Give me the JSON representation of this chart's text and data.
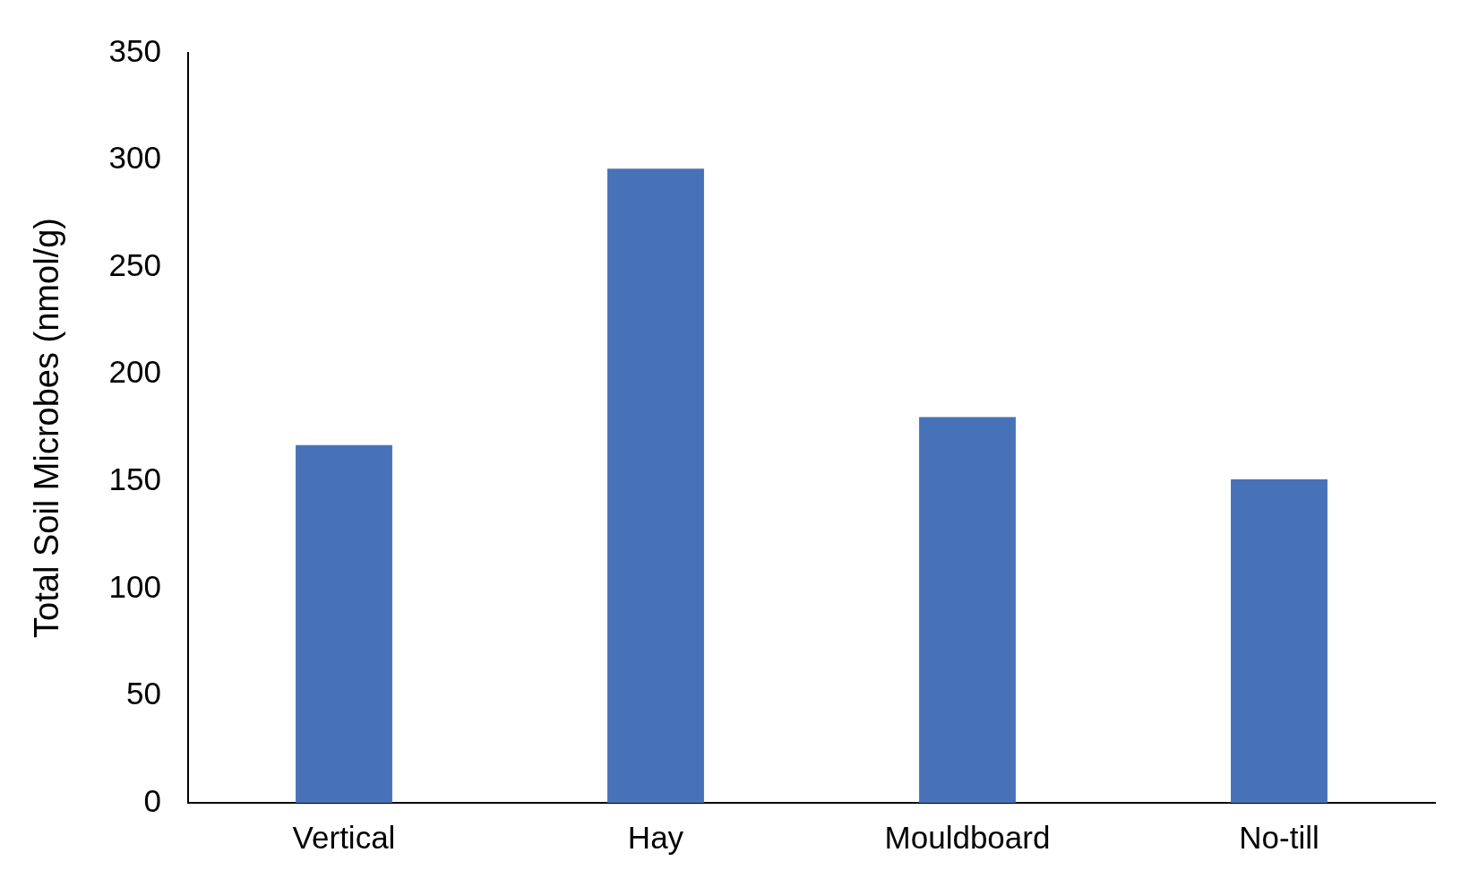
{
  "chart_data": {
    "type": "bar",
    "ylabel": "Total Soil Microbes (nmol/g)",
    "categories": [
      "Vertical",
      "Hay",
      "Mouldboard",
      "No-till"
    ],
    "values": [
      167,
      296,
      180,
      151
    ],
    "color": "#4872b7",
    "ylim": [
      0,
      350
    ],
    "yticks": [
      0,
      50,
      100,
      150,
      200,
      250,
      300,
      350
    ],
    "grid": false,
    "legend": false
  }
}
